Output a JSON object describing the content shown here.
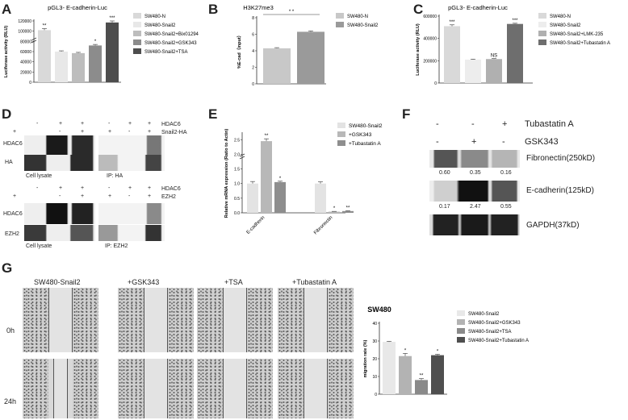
{
  "panels": {
    "A": "A",
    "B": "B",
    "C": "C",
    "D": "D",
    "E": "E",
    "F": "F",
    "G": "G"
  },
  "chart_data": [
    {
      "panel": "A",
      "type": "bar",
      "title": "pGL3- E-cadherin-Luc",
      "ylabel": "Luciferase activity (RLU)",
      "yticks": [
        "0",
        "20000",
        "40000",
        "60000",
        "80000",
        "100000",
        "120000"
      ],
      "ylim": [
        0,
        120000
      ],
      "axis_break": true,
      "categories": [
        "SW480-N",
        "SW480-Snail2",
        "SW480-Snail2+Bix01294",
        "SW480-Snail2+GSK343",
        "SW480-Snail2+TSA"
      ],
      "values": [
        102000,
        60000,
        57000,
        72000,
        117000
      ],
      "errors": [
        3000,
        1500,
        1500,
        2000,
        3000
      ],
      "sig": [
        "**",
        "",
        "",
        "*",
        "***"
      ],
      "colors": [
        "#d9d9d9",
        "#e8e8e8",
        "#bdbdbd",
        "#8c8c8c",
        "#4d4d4d"
      ]
    },
    {
      "panel": "B",
      "type": "bar",
      "title": "H3K27me3",
      "ylabel": "%E-cad（input）",
      "yticks": [
        "0",
        "2",
        "4",
        "6",
        "8"
      ],
      "ylim": [
        0,
        8
      ],
      "categories": [
        "SW480-N",
        "SW480-Snail2"
      ],
      "values": [
        4.3,
        6.3
      ],
      "errors": [
        0.08,
        0.1
      ],
      "sig_bracket": "* *",
      "colors": [
        "#c8c8c8",
        "#9a9a9a"
      ]
    },
    {
      "panel": "C",
      "type": "bar",
      "title": "pGL3- E-cadherin-Luc",
      "ylabel": "Luciferase activity (RLU)",
      "yticks": [
        "0",
        "200000",
        "400000",
        "600000"
      ],
      "ylim": [
        0,
        600000
      ],
      "categories": [
        "SW480-N",
        "SW480-Snail2",
        "SW480-Snail2+LMK-235",
        "SW480-Snail2+Tubastatin A"
      ],
      "values": [
        510000,
        210000,
        215000,
        530000
      ],
      "errors": [
        12000,
        4000,
        4000,
        6000
      ],
      "sig": [
        "***",
        "",
        "NS",
        "***"
      ],
      "colors": [
        "#d9d9d9",
        "#ededed",
        "#b0b0b0",
        "#6e6e6e"
      ]
    },
    {
      "panel": "E",
      "type": "bar",
      "ylabel": "Relative mRNA expression (Ratio to Actin)",
      "yticks": [
        "0.0",
        "0.5",
        "1.0",
        "1.5",
        "2.0",
        "2.5"
      ],
      "ylim": [
        0,
        2.7
      ],
      "axis_break": true,
      "categories": [
        "E-cadherin",
        "Fibronectin"
      ],
      "series": [
        {
          "name": "SW480-Snail2",
          "values": [
            1.0,
            1.0
          ],
          "errors": [
            0.07,
            0.06
          ],
          "sig": [
            "",
            ""
          ]
        },
        {
          "name": "+GSK343",
          "values": [
            2.45,
            0.04
          ],
          "errors": [
            0.08,
            0.01
          ],
          "sig": [
            "**",
            "*"
          ]
        },
        {
          "name": "+Tubastatin A",
          "values": [
            1.05,
            0.06
          ],
          "errors": [
            0.03,
            0.01
          ],
          "sig": [
            "*",
            "**"
          ]
        }
      ],
      "colors": [
        "#e3e3e3",
        "#b8b8b8",
        "#8e8e8e"
      ]
    },
    {
      "panel": "G",
      "type": "bar",
      "title": "SW480",
      "ylabel": "migration rate  (%)",
      "yticks": [
        "0",
        "10",
        "20",
        "30",
        "40"
      ],
      "ylim": [
        0,
        40
      ],
      "categories": [
        "SW480-Snail2",
        "SW480-Snail2+GSK343",
        "SW480-Snail2+TSA",
        "SW480-Snail2+Tubastatin A"
      ],
      "values": [
        29.5,
        21.5,
        8,
        22
      ],
      "errors": [
        0.3,
        1.5,
        0.8,
        0.5
      ],
      "sig": [
        "",
        "*",
        "**",
        "*"
      ],
      "colors": [
        "#e8e8e8",
        "#b3b3b3",
        "#8a8a8a",
        "#4f4f4f"
      ]
    }
  ],
  "panelD": {
    "top": {
      "hdac6_label": "HDAC6",
      "snail_label": "Snail2-HA",
      "hdac6_signs": [
        "-",
        "+",
        "+",
        "-",
        "+",
        "+"
      ],
      "snail_signs": [
        "+",
        "-",
        "+",
        "+",
        "-",
        "+"
      ],
      "rows": [
        "HDAC6",
        "HA"
      ],
      "captions": [
        "Cell lysate",
        "IP: HA"
      ]
    },
    "bottom": {
      "hdac6_label": "HDAC6",
      "ezh2_label": "EZH2",
      "hdac6_signs": [
        "-",
        "+",
        "+",
        "-",
        "+",
        "+"
      ],
      "ezh2_signs": [
        "+",
        "-",
        "+",
        "+",
        "-",
        "+"
      ],
      "rows": [
        "HDAC6",
        "EZH2"
      ],
      "captions": [
        "Cell lysate",
        "IP: EZH2"
      ]
    }
  },
  "panelF": {
    "treatments": [
      {
        "label": "Tubastatin A",
        "signs": [
          "-",
          "-",
          "+"
        ]
      },
      {
        "label": "GSK343",
        "signs": [
          "-",
          "+",
          "-"
        ]
      }
    ],
    "bands": [
      {
        "label": "Fibronectin(250kD)",
        "values": [
          "0.60",
          "0.35",
          "0.16"
        ]
      },
      {
        "label": "E-cadherin(125kD)",
        "values": [
          "0.17",
          "2.47",
          "0.55"
        ]
      },
      {
        "label": "GAPDH(37kD)",
        "values": []
      }
    ]
  },
  "panelG_images": {
    "columns": [
      "SW480-Snail2",
      "+GSK343",
      "+TSA",
      "+Tubastatin A"
    ],
    "rows": [
      "0h",
      "24h"
    ]
  }
}
